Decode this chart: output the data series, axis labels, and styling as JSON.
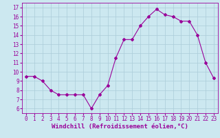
{
  "x": [
    0,
    1,
    2,
    3,
    4,
    5,
    6,
    7,
    8,
    9,
    10,
    11,
    12,
    13,
    14,
    15,
    16,
    17,
    18,
    19,
    20,
    21,
    22,
    23
  ],
  "y": [
    9.5,
    9.5,
    9.0,
    8.0,
    7.5,
    7.5,
    7.5,
    7.5,
    6.0,
    7.5,
    8.5,
    11.5,
    13.5,
    13.5,
    15.0,
    16.0,
    16.8,
    16.2,
    16.0,
    15.5,
    15.5,
    14.0,
    11.0,
    9.3
  ],
  "line_color": "#990099",
  "marker": "D",
  "marker_size": 2.0,
  "bg_color": "#cce8f0",
  "grid_color": "#aaccd8",
  "xlabel": "Windchill (Refroidissement éolien,°C)",
  "xlim": [
    -0.5,
    23.5
  ],
  "ylim": [
    5.5,
    17.5
  ],
  "yticks": [
    6,
    7,
    8,
    9,
    10,
    11,
    12,
    13,
    14,
    15,
    16,
    17
  ],
  "xticks": [
    0,
    1,
    2,
    3,
    4,
    5,
    6,
    7,
    8,
    9,
    10,
    11,
    12,
    13,
    14,
    15,
    16,
    17,
    18,
    19,
    20,
    21,
    22,
    23
  ],
  "tick_color": "#990099",
  "label_color": "#990099",
  "tick_fontsize": 5.5,
  "xlabel_fontsize": 6.5
}
